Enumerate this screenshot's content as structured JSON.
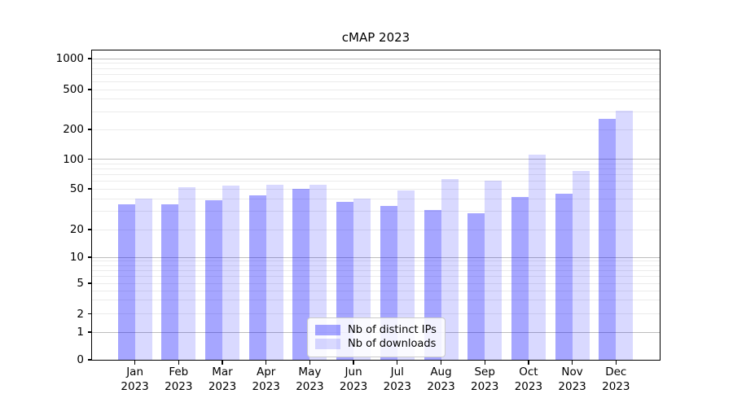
{
  "chart_data": {
    "type": "bar",
    "title": "cMAP 2023",
    "categories": [
      "Jan 2023",
      "Feb 2023",
      "Mar 2023",
      "Apr 2023",
      "May 2023",
      "Jun 2023",
      "Jul 2023",
      "Aug 2023",
      "Sep 2023",
      "Oct 2023",
      "Nov 2023",
      "Dec 2023"
    ],
    "months": [
      "Jan",
      "Feb",
      "Mar",
      "Apr",
      "May",
      "Jun",
      "Jul",
      "Aug",
      "Sep",
      "Oct",
      "Nov",
      "Dec"
    ],
    "year_label": "2023",
    "series": [
      {
        "name": "Nb of distinct IPs",
        "color": "rgba(0,0,255,0.35)",
        "values": [
          35,
          35,
          39,
          43,
          50,
          37,
          34,
          31,
          29,
          42,
          45,
          256
        ]
      },
      {
        "name": "Nb of downloads",
        "color": "rgba(0,0,255,0.15)",
        "values": [
          40,
          52,
          54,
          55,
          55,
          40,
          48,
          63,
          60,
          110,
          76,
          305
        ]
      }
    ],
    "yscale": "symlog",
    "ylim": [
      0,
      1000
    ],
    "yticks": [
      {
        "value": 0,
        "label": "0"
      },
      {
        "value": 1,
        "label": "1"
      },
      {
        "value": 2,
        "label": "2"
      },
      {
        "value": 5,
        "label": "5"
      },
      {
        "value": 10,
        "label": "10"
      },
      {
        "value": 20,
        "label": "20"
      },
      {
        "value": 50,
        "label": "50"
      },
      {
        "value": 100,
        "label": "100"
      },
      {
        "value": 200,
        "label": "200"
      },
      {
        "value": 500,
        "label": "500"
      },
      {
        "value": 1000,
        "label": "1000"
      }
    ],
    "grid": "both",
    "legend_position": "lower-center",
    "colors": {
      "grid_major": "#bdbdbd",
      "grid_minor": "#ebebeb",
      "spine": "#000000",
      "background": "#ffffff"
    }
  }
}
